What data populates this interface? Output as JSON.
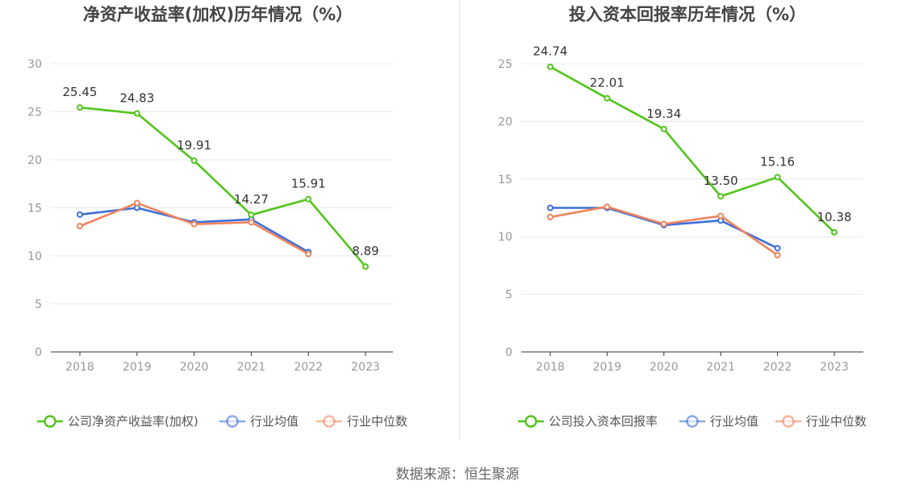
{
  "colors": {
    "company": "#52c41a",
    "industry_avg": "#3b6fd8",
    "industry_median": "#f0845c",
    "axis": "#333333",
    "tick_text": "#999999",
    "grid": "#e6e9f0",
    "title": "#444444",
    "label": "#333333"
  },
  "source": "数据来源：恒生聚源",
  "chart_data": [
    {
      "type": "line",
      "title": "净资产收益率(加权)历年情况（%）",
      "categories": [
        "2018",
        "2019",
        "2020",
        "2021",
        "2022",
        "2023"
      ],
      "ylim": [
        0,
        30
      ],
      "yticks": [
        "0",
        "5",
        "10",
        "15",
        "20",
        "25",
        "30"
      ],
      "grid": true,
      "legend_position": "bottom",
      "series": [
        {
          "name": "公司净资产收益率(加权)",
          "values": [
            25.45,
            24.83,
            19.91,
            14.27,
            15.91,
            8.89
          ],
          "labels": [
            "25.45",
            "24.83",
            "19.91",
            "14.27",
            "15.91",
            "8.89"
          ]
        },
        {
          "name": "行业均值",
          "values": [
            14.3,
            15.0,
            13.5,
            13.8,
            10.4,
            null
          ]
        },
        {
          "name": "行业中位数",
          "values": [
            13.1,
            15.5,
            13.3,
            13.5,
            10.2,
            null
          ]
        }
      ]
    },
    {
      "type": "line",
      "title": "投入资本回报率历年情况（%）",
      "categories": [
        "2018",
        "2019",
        "2020",
        "2021",
        "2022",
        "2023"
      ],
      "ylim": [
        0,
        25
      ],
      "yticks": [
        "0",
        "5",
        "10",
        "15",
        "20",
        "25"
      ],
      "grid": true,
      "legend_position": "bottom",
      "series": [
        {
          "name": "公司投入资本回报率",
          "values": [
            24.74,
            22.01,
            19.34,
            13.5,
            15.16,
            10.38
          ],
          "labels": [
            "24.74",
            "22.01",
            "19.34",
            "13.50",
            "15.16",
            "10.38"
          ]
        },
        {
          "name": "行业均值",
          "values": [
            12.5,
            12.5,
            11.0,
            11.4,
            9.0,
            null
          ]
        },
        {
          "name": "行业中位数",
          "values": [
            11.7,
            12.6,
            11.1,
            11.8,
            8.4,
            null
          ]
        }
      ]
    }
  ]
}
